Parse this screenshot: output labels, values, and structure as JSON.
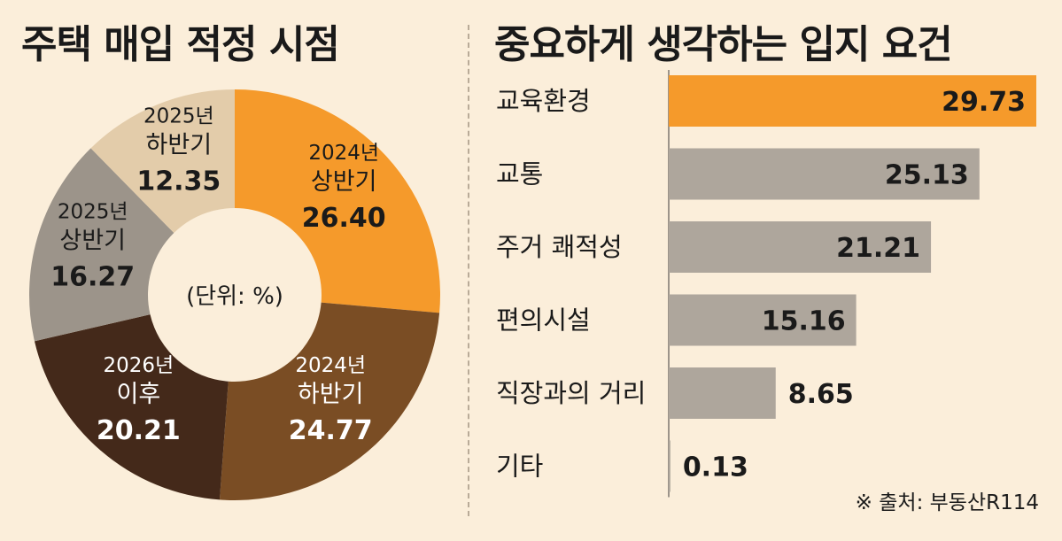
{
  "titles": {
    "left": "주택 매입 적정 시점",
    "right": "중요하게 생각하는 입지 요건"
  },
  "chart_data": [
    {
      "type": "pie",
      "title": "주택 매입 적정 시점",
      "center_label": "(단위: %)",
      "slices": [
        {
          "year": "2024년",
          "period": "상반기",
          "value": 26.4,
          "value_text": "26.40",
          "color": "#f59a2b",
          "text_color": "#1a1a1a"
        },
        {
          "year": "2024년",
          "period": "하반기",
          "value": 24.77,
          "value_text": "24.77",
          "color": "#7a4d24",
          "text_color": "#ffffff"
        },
        {
          "year": "2026년",
          "period": "이후",
          "value": 20.21,
          "value_text": "20.21",
          "color": "#44291a",
          "text_color": "#ffffff"
        },
        {
          "year": "2025년",
          "period": "상반기",
          "value": 16.27,
          "value_text": "16.27",
          "color": "#9c948a",
          "text_color": "#1a1a1a"
        },
        {
          "year": "2025년",
          "period": "하반기",
          "value": 12.35,
          "value_text": "12.35",
          "color": "#e3ccaa",
          "text_color": "#1a1a1a"
        }
      ]
    },
    {
      "type": "bar",
      "orientation": "horizontal",
      "title": "중요하게 생각하는 입지 요건",
      "categories": [
        "교육환경",
        "교통",
        "주거 쾌적성",
        "편의시설",
        "직장과의 거리",
        "기타"
      ],
      "values": [
        29.73,
        25.13,
        21.21,
        15.16,
        8.65,
        0.13
      ],
      "value_labels": [
        "29.73",
        "25.13",
        "21.21",
        "15.16",
        "8.65",
        "0.13"
      ],
      "highlight_color": "#f59a2b",
      "bar_color": "#aea69c"
    }
  ],
  "source": "※ 출처: 부동산R114"
}
